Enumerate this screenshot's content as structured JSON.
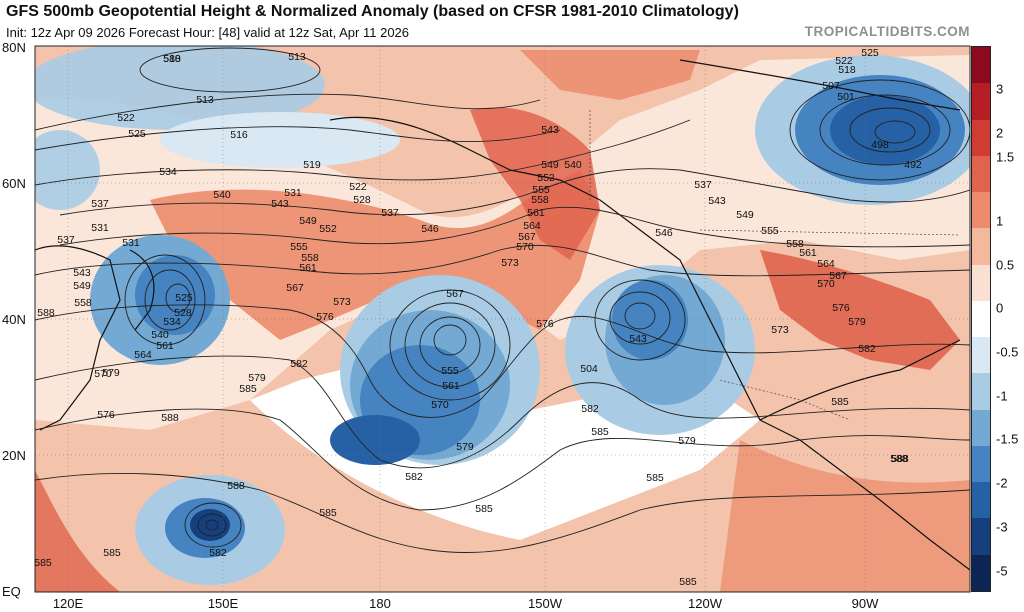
{
  "header": {
    "title": "GFS 500mb Geopotential Height & Normalized Anomaly (based on CFSR 1981-2010 Climatology)",
    "subtitle": "Init: 12z Apr 09 2026   Forecast Hour: [48]   valid at 12z Sat, Apr 11 2026",
    "credit": "TROPICALTIDBITS.COM"
  },
  "axes": {
    "lat_labels": [
      "80N",
      "60N",
      "40N",
      "20N",
      "EQ"
    ],
    "lon_labels": [
      "120E",
      "150E",
      "180",
      "150W",
      "120W",
      "90W"
    ]
  },
  "colorbar": {
    "labels": [
      "3",
      "2",
      "1.5",
      "1",
      "0.5",
      "0",
      "-0.5",
      "-1",
      "-1.5",
      "-2",
      "-3",
      "-5"
    ],
    "colors": [
      "#8c0a1e",
      "#b41e24",
      "#cf3c33",
      "#e0644d",
      "#ec8c6c",
      "#f4b89d",
      "#fae0d2",
      "#ffffff",
      "#d9e8f3",
      "#a9cce4",
      "#74a9d3",
      "#4584c0",
      "#2761a5",
      "#163f7e",
      "#0c2552"
    ]
  },
  "contours": {
    "labels": [
      "510",
      "513",
      "513",
      "516",
      "519",
      "522",
      "525",
      "534",
      "540",
      "537",
      "531",
      "543",
      "531",
      "528",
      "522",
      "537",
      "549",
      "552",
      "546",
      "555",
      "558",
      "561",
      "567",
      "573",
      "576",
      "582",
      "579",
      "585",
      "588",
      "567",
      "555",
      "561",
      "570",
      "579",
      "582",
      "585",
      "585",
      "582",
      "585",
      "585",
      "576",
      "573",
      "570",
      "567",
      "564",
      "561",
      "558",
      "555",
      "552",
      "549",
      "543",
      "540",
      "546",
      "537",
      "543",
      "549",
      "555",
      "558",
      "561",
      "564",
      "567",
      "570",
      "573",
      "576",
      "579",
      "582",
      "585",
      "588",
      "582",
      "579",
      "543",
      "525",
      "528",
      "534",
      "540",
      "543",
      "549",
      "558",
      "561",
      "564",
      "570",
      "576",
      "579",
      "588",
      "585",
      "588",
      "582",
      "537",
      "531",
      "522",
      "518",
      "525",
      "507",
      "501",
      "498",
      "492",
      "504",
      "585",
      "585",
      "588",
      "588"
    ]
  },
  "map_colors": {
    "background": "#fbe6da",
    "neutral": "#ffffff",
    "warm_light": "#f4b89d",
    "warm": "#ec8c6c",
    "warm_strong": "#e0644d",
    "cool_light": "#d9e8f3",
    "cool": "#a9cce4",
    "cool_mid": "#74a9d3",
    "cool_strong": "#4584c0",
    "cool_deep": "#2761a5",
    "contour": "#222222",
    "coast": "#111111"
  }
}
